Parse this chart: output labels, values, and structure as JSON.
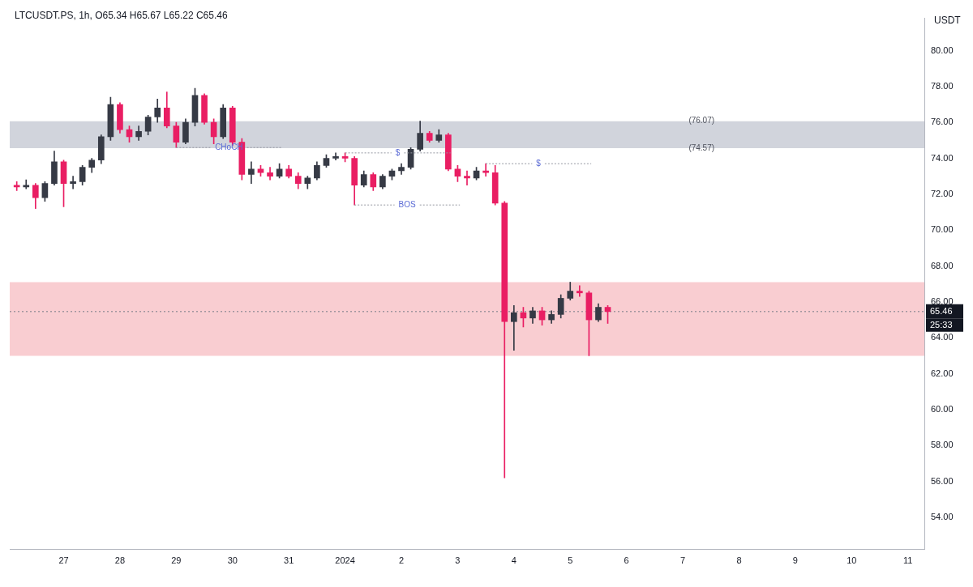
{
  "chart_data": {
    "type": "candlestick",
    "title": "LTCUSDT.PS, 1h, O65.34 H65.67 L65.22 C65.46",
    "ylabel": "USDT",
    "x": [
      "2023-12-26T04:00",
      "2023-12-26T08:00",
      "2023-12-26T12:00",
      "2023-12-26T16:00",
      "2023-12-26T20:00",
      "2023-12-27T00:00",
      "2023-12-27T04:00",
      "2023-12-27T08:00",
      "2023-12-27T12:00",
      "2023-12-27T16:00",
      "2023-12-27T20:00",
      "2023-12-28T00:00",
      "2023-12-28T04:00",
      "2023-12-28T08:00",
      "2023-12-28T12:00",
      "2023-12-28T16:00",
      "2023-12-28T20:00",
      "2023-12-29T00:00",
      "2023-12-29T04:00",
      "2023-12-29T08:00",
      "2023-12-29T12:00",
      "2023-12-29T16:00",
      "2023-12-29T20:00",
      "2023-12-30T00:00",
      "2023-12-30T04:00",
      "2023-12-30T08:00",
      "2023-12-30T12:00",
      "2023-12-30T16:00",
      "2023-12-30T20:00",
      "2023-12-31T00:00",
      "2023-12-31T04:00",
      "2023-12-31T08:00",
      "2023-12-31T12:00",
      "2023-12-31T16:00",
      "2023-12-31T20:00",
      "2024-01-01T00:00",
      "2024-01-01T04:00",
      "2024-01-01T08:00",
      "2024-01-01T12:00",
      "2024-01-01T16:00",
      "2024-01-01T20:00",
      "2024-01-02T00:00",
      "2024-01-02T04:00",
      "2024-01-02T08:00",
      "2024-01-02T12:00",
      "2024-01-02T16:00",
      "2024-01-02T20:00",
      "2024-01-03T00:00",
      "2024-01-03T04:00",
      "2024-01-03T08:00",
      "2024-01-03T12:00",
      "2024-01-03T16:00",
      "2024-01-03T20:00",
      "2024-01-04T00:00",
      "2024-01-04T04:00",
      "2024-01-04T08:00",
      "2024-01-04T12:00",
      "2024-01-04T16:00",
      "2024-01-04T20:00",
      "2024-01-05T00:00",
      "2024-01-05T04:00",
      "2024-01-05T08:00",
      "2024-01-05T12:00",
      "2024-01-05T16:00"
    ],
    "ohlc": [
      [
        72.5,
        72.7,
        72.2,
        72.4
      ],
      [
        72.4,
        72.8,
        72.3,
        72.5
      ],
      [
        72.5,
        72.6,
        71.2,
        71.8
      ],
      [
        71.8,
        72.7,
        71.6,
        72.6
      ],
      [
        72.6,
        74.4,
        72.5,
        73.8
      ],
      [
        73.8,
        73.9,
        71.3,
        72.6
      ],
      [
        72.6,
        73.0,
        72.3,
        72.7
      ],
      [
        72.7,
        73.6,
        72.5,
        73.5
      ],
      [
        73.5,
        74.0,
        73.2,
        73.9
      ],
      [
        73.9,
        75.3,
        73.7,
        75.2
      ],
      [
        75.2,
        77.4,
        75.0,
        77.0
      ],
      [
        77.0,
        77.1,
        75.4,
        75.6
      ],
      [
        75.6,
        75.8,
        74.9,
        75.2
      ],
      [
        75.2,
        75.8,
        75.0,
        75.5
      ],
      [
        75.5,
        76.4,
        75.3,
        76.3
      ],
      [
        76.3,
        77.3,
        76.0,
        76.8
      ],
      [
        76.8,
        77.7,
        75.7,
        75.8
      ],
      [
        75.8,
        76.0,
        74.6,
        74.9
      ],
      [
        74.9,
        76.2,
        74.8,
        76.0
      ],
      [
        76.0,
        77.9,
        75.8,
        77.5
      ],
      [
        77.5,
        77.6,
        75.9,
        76.0
      ],
      [
        76.0,
        76.2,
        74.8,
        75.2
      ],
      [
        75.2,
        77.0,
        75.1,
        76.8
      ],
      [
        76.8,
        76.9,
        74.7,
        74.9
      ],
      [
        74.9,
        75.1,
        72.8,
        73.1
      ],
      [
        73.1,
        73.8,
        72.6,
        73.4
      ],
      [
        73.4,
        73.6,
        73.0,
        73.2
      ],
      [
        73.2,
        73.5,
        72.8,
        73.0
      ],
      [
        73.0,
        73.7,
        72.9,
        73.4
      ],
      [
        73.4,
        73.6,
        72.9,
        73.0
      ],
      [
        73.0,
        73.2,
        72.3,
        72.6
      ],
      [
        72.6,
        73.0,
        72.3,
        72.9
      ],
      [
        72.9,
        73.8,
        72.8,
        73.6
      ],
      [
        73.6,
        74.2,
        73.5,
        74.0
      ],
      [
        74.0,
        74.3,
        73.9,
        74.1
      ],
      [
        74.1,
        74.3,
        73.8,
        74.0
      ],
      [
        74.0,
        74.1,
        71.4,
        72.5
      ],
      [
        72.5,
        73.3,
        72.4,
        73.1
      ],
      [
        73.1,
        73.2,
        72.2,
        72.4
      ],
      [
        72.4,
        73.1,
        72.3,
        73.0
      ],
      [
        73.0,
        73.4,
        72.8,
        73.3
      ],
      [
        73.3,
        73.7,
        73.1,
        73.5
      ],
      [
        73.5,
        74.6,
        73.4,
        74.5
      ],
      [
        74.5,
        76.07,
        74.4,
        75.4
      ],
      [
        75.4,
        75.5,
        74.9,
        75.0
      ],
      [
        75.0,
        75.6,
        74.9,
        75.3
      ],
      [
        75.3,
        75.4,
        73.3,
        73.4
      ],
      [
        73.4,
        73.6,
        72.7,
        73.0
      ],
      [
        73.0,
        73.3,
        72.5,
        72.9
      ],
      [
        72.9,
        73.5,
        72.8,
        73.3
      ],
      [
        73.3,
        73.7,
        73.0,
        73.2
      ],
      [
        73.2,
        73.6,
        71.4,
        71.5
      ],
      [
        71.5,
        71.6,
        56.2,
        64.9
      ],
      [
        64.9,
        65.8,
        63.3,
        65.4
      ],
      [
        65.4,
        65.7,
        64.6,
        65.1
      ],
      [
        65.1,
        65.7,
        64.8,
        65.5
      ],
      [
        65.5,
        65.7,
        64.7,
        65.0
      ],
      [
        65.0,
        65.5,
        64.8,
        65.3
      ],
      [
        65.3,
        66.4,
        65.1,
        66.2
      ],
      [
        66.2,
        67.1,
        66.1,
        66.6
      ],
      [
        66.6,
        66.9,
        66.3,
        66.5
      ],
      [
        66.5,
        66.6,
        63.0,
        65.0
      ],
      [
        65.0,
        65.9,
        64.9,
        65.7
      ],
      [
        65.7,
        65.8,
        64.8,
        65.46
      ]
    ],
    "colors": [
      "#e91e63",
      "#363a45",
      "#e91e63",
      "#363a45",
      "#363a45",
      "#e91e63",
      "#363a45",
      "#363a45",
      "#363a45",
      "#363a45",
      "#363a45",
      "#e91e63",
      "#e91e63",
      "#363a45",
      "#363a45",
      "#363a45",
      "#e91e63",
      "#e91e63",
      "#363a45",
      "#363a45",
      "#e91e63",
      "#e91e63",
      "#363a45",
      "#e91e63",
      "#e91e63",
      "#363a45",
      "#e91e63",
      "#e91e63",
      "#363a45",
      "#e91e63",
      "#e91e63",
      "#363a45",
      "#363a45",
      "#363a45",
      "#363a45",
      "#e91e63",
      "#e91e63",
      "#363a45",
      "#e91e63",
      "#363a45",
      "#363a45",
      "#363a45",
      "#363a45",
      "#363a45",
      "#e91e63",
      "#363a45",
      "#e91e63",
      "#e91e63",
      "#e91e63",
      "#363a45",
      "#e91e63",
      "#e91e63",
      "#e91e63",
      "#363a45",
      "#e91e63",
      "#363a45",
      "#e91e63",
      "#363a45",
      "#363a45",
      "#363a45",
      "#e91e63",
      "#e91e63",
      "#363a45",
      "#e91e63"
    ],
    "xlim": [
      "2023-12-26T01:00",
      "2024-01-11T07:00"
    ],
    "xticks": [
      {
        "value": "2023-12-27",
        "label": "27"
      },
      {
        "value": "2023-12-28",
        "label": "28"
      },
      {
        "value": "2023-12-29",
        "label": "29"
      },
      {
        "value": "2023-12-30",
        "label": "30"
      },
      {
        "value": "2023-12-31",
        "label": "31"
      },
      {
        "value": "2024-01-01",
        "label": "2024"
      },
      {
        "value": "2024-01-02",
        "label": "2"
      },
      {
        "value": "2024-01-03",
        "label": "3"
      },
      {
        "value": "2024-01-04",
        "label": "4"
      },
      {
        "value": "2024-01-05",
        "label": "5"
      },
      {
        "value": "2024-01-06",
        "label": "6"
      },
      {
        "value": "2024-01-07",
        "label": "7"
      },
      {
        "value": "2024-01-08",
        "label": "8"
      },
      {
        "value": "2024-01-09",
        "label": "9"
      },
      {
        "value": "2024-01-10",
        "label": "10"
      },
      {
        "value": "2024-01-11",
        "label": "11"
      }
    ],
    "ylim": [
      52.2,
      81.8
    ],
    "yticks": [
      {
        "value": 54,
        "label": "54.00"
      },
      {
        "value": 56,
        "label": "56.00"
      },
      {
        "value": 58,
        "label": "58.00"
      },
      {
        "value": 60,
        "label": "60.00"
      },
      {
        "value": 62,
        "label": "62.00"
      },
      {
        "value": 64,
        "label": "64.00"
      },
      {
        "value": 66,
        "label": "66.00"
      },
      {
        "value": 68,
        "label": "68.00"
      },
      {
        "value": 70,
        "label": "70.00"
      },
      {
        "value": 72,
        "label": "72.00"
      },
      {
        "value": 74,
        "label": "74.00"
      },
      {
        "value": 76,
        "label": "76.00"
      },
      {
        "value": 78,
        "label": "78.00"
      },
      {
        "value": 80,
        "label": "80.00"
      }
    ],
    "bands": [
      {
        "axis": "y",
        "from": 74.57,
        "to": 76.07,
        "color": "#d1d4dc"
      },
      {
        "axis": "y",
        "from": 63.0,
        "to": 67.1,
        "color": "#f9cdd1"
      }
    ],
    "ref_lines": [
      {
        "axis": "y",
        "value": 65.46,
        "label": "65.46",
        "line_style": "dotted",
        "color": "#787b86"
      }
    ],
    "annotations": [
      {
        "text": "CHoCH",
        "x": "2023-12-29T00:00",
        "y": 74.6
      },
      {
        "text": "BOS",
        "x": "2024-01-01T04:00",
        "y": 71.4
      },
      {
        "text": "$",
        "x": "2024-01-01T00:00",
        "y": 74.3
      },
      {
        "text": "$",
        "x": "2024-01-03T12:00",
        "y": 73.7
      },
      {
        "text": "(76.07)",
        "x": "2024-01-07T08:00",
        "y": 76.07
      },
      {
        "text": "(74.57)",
        "x": "2024-01-07T08:00",
        "y": 74.57
      },
      "25:33"
    ],
    "grid": false,
    "legend": false
  }
}
